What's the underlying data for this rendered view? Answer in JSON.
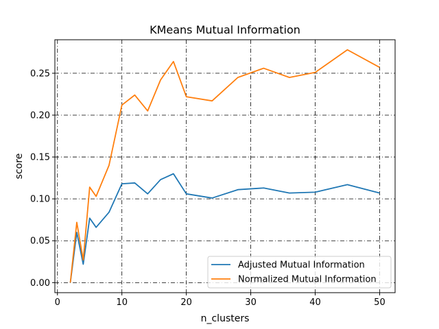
{
  "chart_data": {
    "type": "line",
    "title": "KMeans Mutual Information",
    "xlabel": "n_clusters",
    "ylabel": "score",
    "xlim": [
      -0.4,
      52.4
    ],
    "ylim": [
      -0.012,
      0.29
    ],
    "xticks": [
      0,
      10,
      20,
      30,
      40,
      50
    ],
    "xtick_labels": [
      "0",
      "10",
      "20",
      "30",
      "40",
      "50"
    ],
    "yticks": [
      0.0,
      0.05,
      0.1,
      0.15,
      0.2,
      0.25
    ],
    "ytick_labels": [
      "0.00",
      "0.05",
      "0.10",
      "0.15",
      "0.20",
      "0.25"
    ],
    "grid": true,
    "grid_style": "dashdot",
    "legend_position": "lower-right",
    "series": [
      {
        "name": "Adjusted Mutual Information",
        "color": "#1f77b4",
        "x": [
          2,
          3,
          4,
          5,
          6,
          8,
          10,
          12,
          14,
          16,
          18,
          20,
          24,
          28,
          32,
          36,
          40,
          45,
          50
        ],
        "y": [
          0.0,
          0.06,
          0.022,
          0.077,
          0.066,
          0.084,
          0.118,
          0.119,
          0.106,
          0.123,
          0.13,
          0.106,
          0.101,
          0.111,
          0.113,
          0.107,
          0.108,
          0.117,
          0.107
        ]
      },
      {
        "name": "Normalized Mutual Information",
        "color": "#ff7f0e",
        "x": [
          2,
          3,
          4,
          5,
          6,
          8,
          10,
          12,
          14,
          16,
          18,
          20,
          24,
          28,
          32,
          36,
          40,
          45,
          50
        ],
        "y": [
          0.0,
          0.072,
          0.027,
          0.114,
          0.103,
          0.14,
          0.212,
          0.224,
          0.205,
          0.242,
          0.264,
          0.222,
          0.217,
          0.245,
          0.256,
          0.245,
          0.251,
          0.278,
          0.257
        ]
      }
    ]
  }
}
